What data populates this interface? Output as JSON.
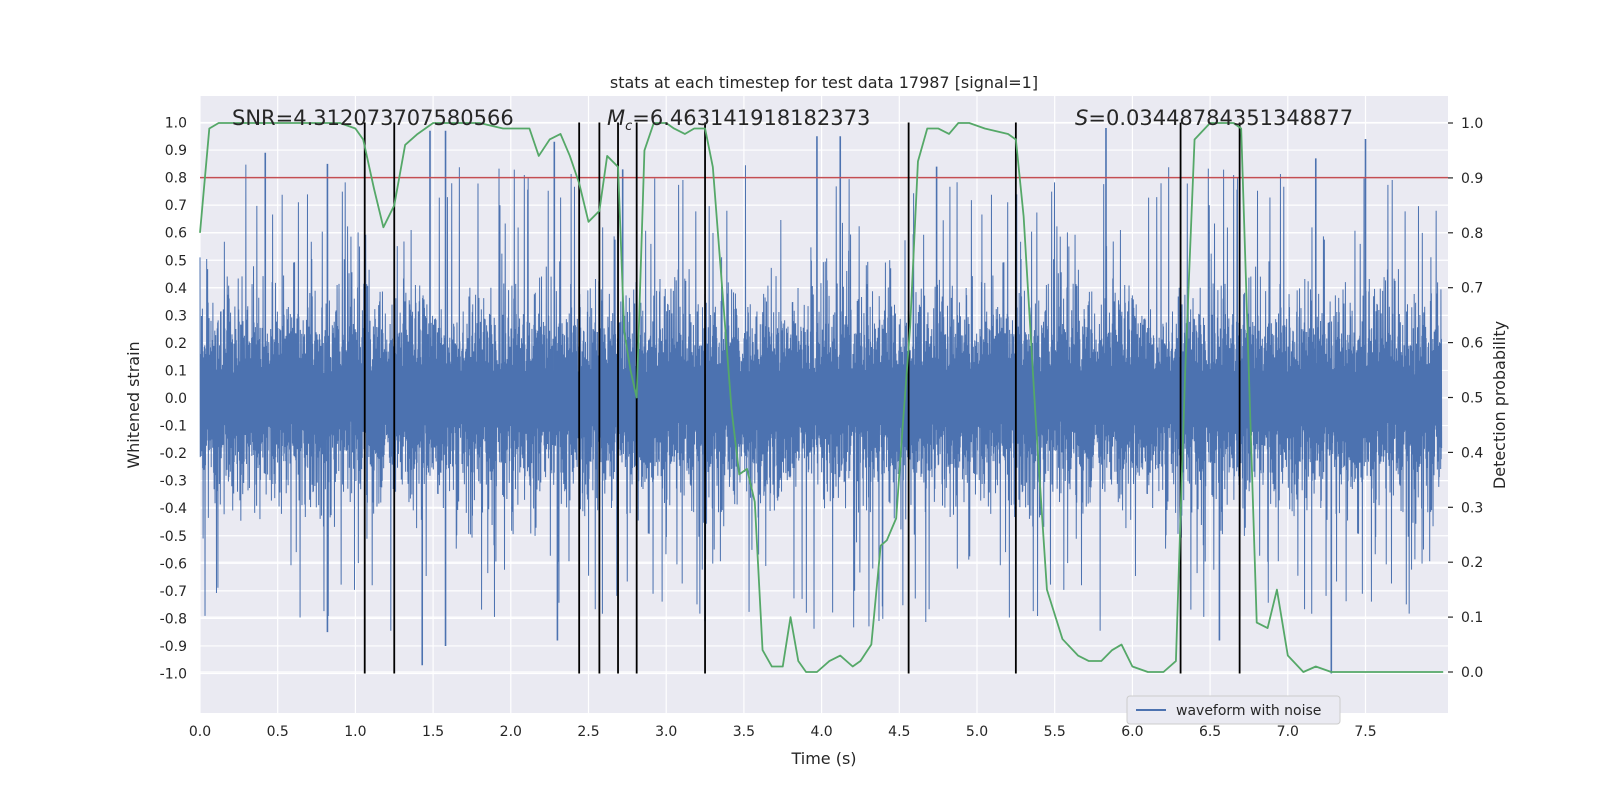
{
  "chart_data": {
    "type": "line",
    "title": "stats at each timestep for test data 17987 [signal=1]",
    "xlabel": "Time (s)",
    "ylabel": "Whitened strain",
    "y2label": "Detection probability",
    "xlim": [
      0.0,
      8.0
    ],
    "ylim": [
      -1.1,
      1.1
    ],
    "y2lim": [
      -0.05,
      1.05
    ],
    "x_ticks": [
      "0.0",
      "0.5",
      "1.0",
      "1.5",
      "2.0",
      "2.5",
      "3.0",
      "3.5",
      "4.0",
      "4.5",
      "5.0",
      "5.5",
      "6.0",
      "6.5",
      "7.0",
      "7.5"
    ],
    "y_ticks": [
      "1.0",
      "0.9",
      "0.8",
      "0.7",
      "0.6",
      "0.5",
      "0.4",
      "0.3",
      "0.2",
      "0.1",
      "0.0",
      "-0.1",
      "-0.2",
      "-0.3",
      "-0.4",
      "-0.5",
      "-0.6",
      "-0.7",
      "-0.8",
      "-0.9",
      "-1.0"
    ],
    "y2_ticks": [
      "1.0",
      "0.9",
      "0.8",
      "0.7",
      "0.6",
      "0.5",
      "0.4",
      "0.3",
      "0.2",
      "0.1",
      "0.0"
    ],
    "grid": true,
    "legend_position": "bottom-right",
    "annotations": {
      "snr_prefix": "SNR",
      "snr_value": "4.312073707580566",
      "mc_symbol": "M",
      "mc_subscript": "c",
      "mc_value": "6.463141918182373",
      "s_symbol": "S",
      "s_value": "0.03448784351348877"
    },
    "threshold": {
      "y": 0.8,
      "color": "#c44e52"
    },
    "event_markers_s": [
      1.06,
      1.25,
      2.44,
      2.57,
      2.69,
      2.81,
      3.25,
      4.56,
      5.25,
      6.31,
      6.69
    ],
    "series": [
      {
        "name": "waveform with noise",
        "color": "#4c72b0",
        "axis": "left",
        "envelope_note": "dense noise; core band roughly -0.4 to 0.4, peaks near ±0.9",
        "peaks": [
          {
            "x": 0.42,
            "y": 0.89
          },
          {
            "x": 0.82,
            "y": 0.85
          },
          {
            "x": 1.48,
            "y": 0.97
          },
          {
            "x": 1.58,
            "y": 0.97
          },
          {
            "x": 2.28,
            "y": 0.93
          },
          {
            "x": 2.72,
            "y": 0.83
          },
          {
            "x": 3.97,
            "y": 0.95
          },
          {
            "x": 4.12,
            "y": 0.95
          },
          {
            "x": 4.74,
            "y": 0.84
          },
          {
            "x": 5.83,
            "y": 0.98
          },
          {
            "x": 7.18,
            "y": 0.87
          },
          {
            "x": 7.5,
            "y": 0.94
          },
          {
            "x": 0.82,
            "y": -0.85
          },
          {
            "x": 1.43,
            "y": -0.97
          },
          {
            "x": 1.58,
            "y": -0.9
          },
          {
            "x": 2.3,
            "y": -0.88
          },
          {
            "x": 3.25,
            "y": -0.81
          },
          {
            "x": 6.56,
            "y": -0.88
          },
          {
            "x": 7.28,
            "y": -1.0
          }
        ]
      },
      {
        "name": "",
        "color": "#55a868",
        "axis": "right",
        "x": [
          0.0,
          0.06,
          0.12,
          0.3,
          0.6,
          0.9,
          1.0,
          1.05,
          1.12,
          1.18,
          1.25,
          1.32,
          1.4,
          1.5,
          1.6,
          1.8,
          1.95,
          2.0,
          2.05,
          2.12,
          2.18,
          2.25,
          2.32,
          2.38,
          2.44,
          2.5,
          2.57,
          2.62,
          2.69,
          2.73,
          2.77,
          2.81,
          2.86,
          2.92,
          3.0,
          3.05,
          3.12,
          3.18,
          3.25,
          3.3,
          3.36,
          3.42,
          3.47,
          3.52,
          3.57,
          3.62,
          3.68,
          3.75,
          3.8,
          3.85,
          3.9,
          3.97,
          4.05,
          4.12,
          4.2,
          4.25,
          4.32,
          4.38,
          4.42,
          4.48,
          4.52,
          4.57,
          4.62,
          4.68,
          4.75,
          4.82,
          4.88,
          4.95,
          5.05,
          5.2,
          5.25,
          5.3,
          5.38,
          5.45,
          5.55,
          5.65,
          5.72,
          5.8,
          5.87,
          5.93,
          6.0,
          6.1,
          6.2,
          6.28,
          6.34,
          6.4,
          6.5,
          6.65,
          6.7,
          6.8,
          6.87,
          6.93,
          7.0,
          7.1,
          7.18,
          7.28,
          7.4,
          7.55,
          7.7,
          7.9,
          8.0
        ],
        "y": [
          0.8,
          0.99,
          1.0,
          1.0,
          1.0,
          1.0,
          0.99,
          0.97,
          0.88,
          0.81,
          0.85,
          0.96,
          0.98,
          1.0,
          1.0,
          1.0,
          0.99,
          0.99,
          0.99,
          0.99,
          0.94,
          0.97,
          0.98,
          0.94,
          0.89,
          0.82,
          0.84,
          0.94,
          0.92,
          0.62,
          0.55,
          0.5,
          0.95,
          1.0,
          1.0,
          0.99,
          0.98,
          0.99,
          0.99,
          0.92,
          0.7,
          0.48,
          0.36,
          0.37,
          0.31,
          0.04,
          0.01,
          0.01,
          0.1,
          0.02,
          0.0,
          0.0,
          0.02,
          0.03,
          0.01,
          0.02,
          0.05,
          0.23,
          0.24,
          0.28,
          0.44,
          0.63,
          0.93,
          0.99,
          0.99,
          0.98,
          1.0,
          1.0,
          0.99,
          0.98,
          0.97,
          0.83,
          0.45,
          0.15,
          0.06,
          0.03,
          0.02,
          0.02,
          0.04,
          0.05,
          0.01,
          0.0,
          0.0,
          0.02,
          0.55,
          0.97,
          1.0,
          1.0,
          0.99,
          0.09,
          0.08,
          0.15,
          0.03,
          0.0,
          0.01,
          0.0,
          0.0,
          0.0,
          0.0,
          0.0,
          0.0
        ]
      }
    ]
  }
}
